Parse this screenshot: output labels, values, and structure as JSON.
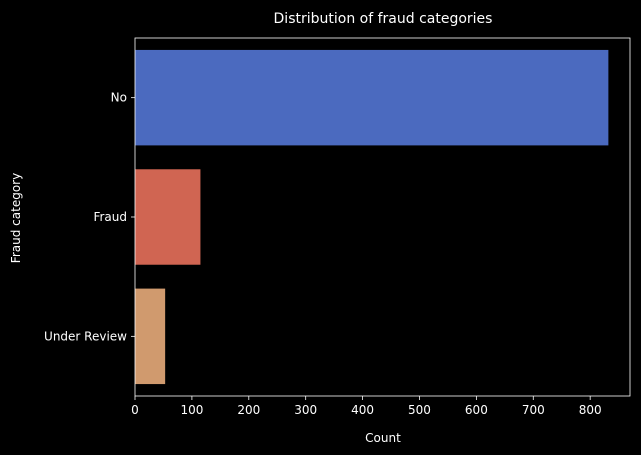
{
  "chart_data": {
    "type": "bar",
    "orientation": "horizontal",
    "title": "Distribution of fraud categories",
    "xlabel": "Count",
    "ylabel": "Fraud category",
    "categories": [
      "No",
      "Fraud",
      "Under Review"
    ],
    "values": [
      832,
      115,
      53
    ],
    "colors": [
      "#4B6ABF",
      "#D06552",
      "#D09A6E"
    ],
    "xlim": [
      0,
      870
    ],
    "xticks": [
      0,
      100,
      200,
      300,
      400,
      500,
      600,
      700,
      800
    ],
    "grid": false,
    "legend": "none"
  },
  "theme": {
    "background": "#000000",
    "foreground": "#ffffff"
  }
}
